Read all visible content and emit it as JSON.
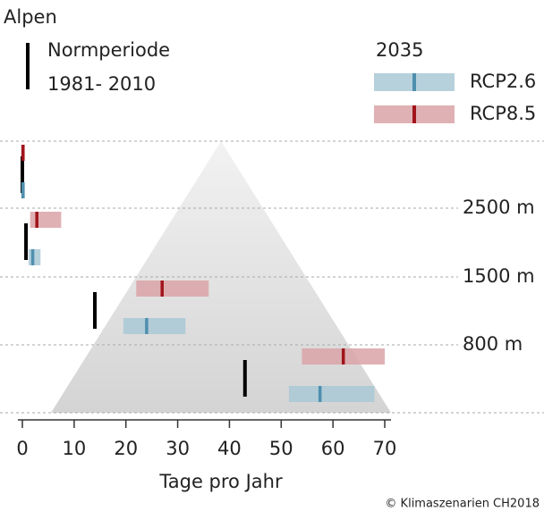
{
  "chart_data": {
    "type": "range",
    "title": "Alpen",
    "xlabel": "Tage pro Jahr",
    "credit": "© Klimaszenarien CH2018",
    "legend_title": "2035",
    "xlim": [
      0,
      70
    ],
    "xticks": [
      0,
      10,
      20,
      30,
      40,
      50,
      60,
      70
    ],
    "elevation_labels": [
      "2500 m",
      "1500 m",
      "800 m"
    ],
    "reference": {
      "name": "Normperiode",
      "period": "1981- 2010",
      "color": "#000000",
      "values": [
        0,
        0.7,
        14,
        43
      ]
    },
    "series": [
      {
        "name": "RCP2.6",
        "color": "#a9c9d6",
        "median_color": "#4f8fae",
        "low": [
          0,
          1.2,
          19.5,
          51.5
        ],
        "median": [
          0.1,
          2,
          24,
          57.5
        ],
        "high": [
          0.2,
          3.5,
          31.5,
          68
        ]
      },
      {
        "name": "RCP8.5",
        "color": "#dba3a7",
        "median_color": "#a0151b",
        "low": [
          0,
          1.5,
          22,
          54
        ],
        "median": [
          0.1,
          2.8,
          27,
          62
        ],
        "high": [
          0.3,
          7.5,
          36,
          70
        ]
      }
    ]
  }
}
